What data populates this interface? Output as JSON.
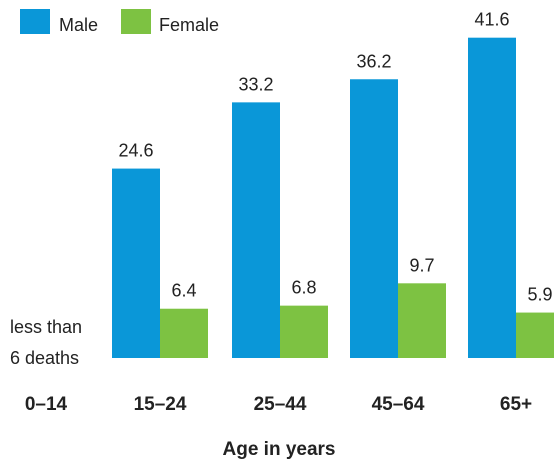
{
  "chart_data": {
    "type": "bar",
    "categories": [
      "0–14",
      "15–24",
      "25–44",
      "45–64",
      "65+"
    ],
    "series": [
      {
        "name": "Male",
        "values": [
          null,
          24.6,
          33.2,
          36.2,
          41.6
        ]
      },
      {
        "name": "Female",
        "values": [
          null,
          6.4,
          6.8,
          9.7,
          5.9
        ]
      }
    ],
    "annotations": {
      "first_category_note_line1": "less than",
      "first_category_note_line2": "6 deaths"
    },
    "xlabel": "Age in years",
    "ylabel": "",
    "legend_position": "top-left",
    "grid": false,
    "ylim": [
      0,
      45
    ],
    "colors": {
      "male": "#0A97D8",
      "female": "#7DC242",
      "text": "#222222"
    }
  }
}
